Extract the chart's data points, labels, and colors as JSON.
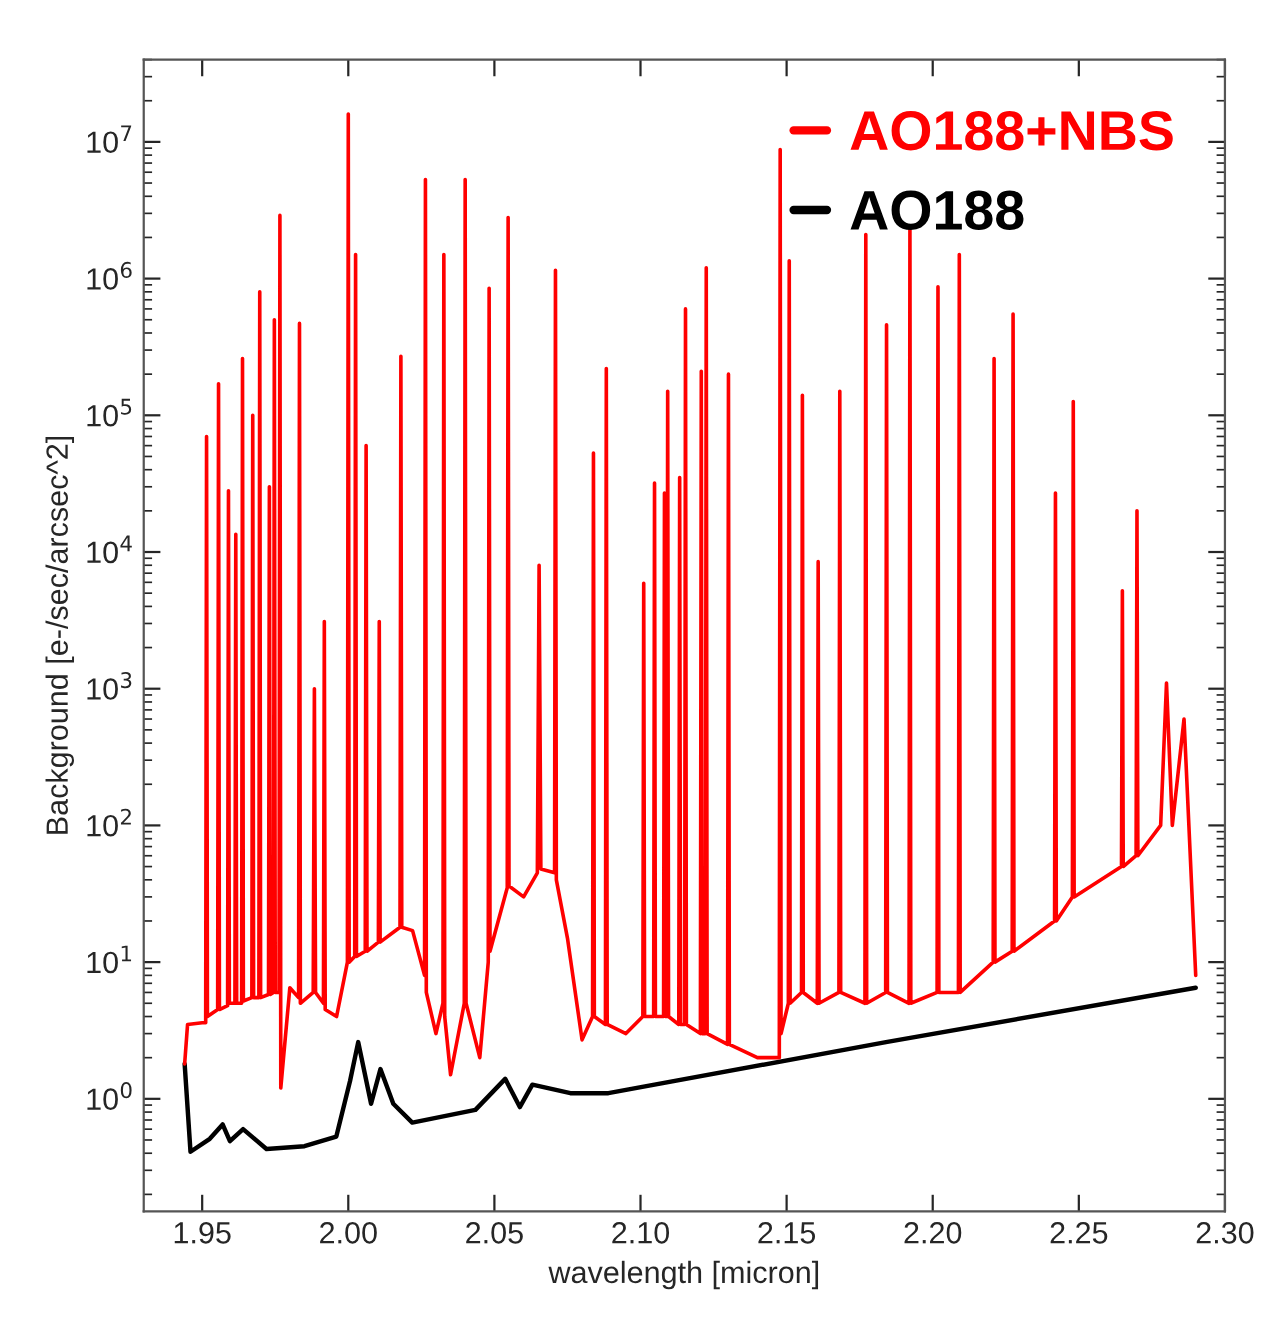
{
  "chart_data": {
    "type": "line",
    "xlabel": "wavelength [micron]",
    "ylabel": "Background [e-/sec/arcsec^2]",
    "log": "y",
    "grid": false,
    "legend": "top right",
    "marker": "none",
    "line_style": "solid",
    "xlim": [
      1.93,
      2.3
    ],
    "ylim": [
      0.15,
      40000000
    ],
    "xticks": [
      1.95,
      {
        "value": 2.0,
        "label": "2.00"
      },
      2.05,
      {
        "value": 2.1,
        "label": "2.10"
      },
      2.15,
      {
        "value": 2.2,
        "label": "2.20"
      },
      2.25,
      {
        "value": 2.3,
        "label": "2.30"
      }
    ],
    "yticks": [
      {
        "value": 1,
        "label": "10$^{0}$"
      },
      {
        "value": 10,
        "label": "10$^{1}$"
      },
      {
        "value": 100,
        "label": "10$^{2}$"
      },
      {
        "value": 1000,
        "label": "10$^{3}$"
      },
      {
        "value": 10000,
        "label": "10$^{4}$"
      },
      {
        "value": 100000,
        "label": "10$^{5}$"
      },
      {
        "value": 1000000,
        "label": "10$^{6}$"
      },
      {
        "value": 10000000,
        "label": "10$^{7}$"
      }
    ],
    "series": [
      {
        "name": "AO188",
        "color": "#000000",
        "x": [
          1.944,
          1.946,
          1.9526,
          1.957,
          1.9595,
          1.964,
          1.972,
          1.985,
          1.9959,
          2.0006,
          2.0034,
          2.0078,
          2.011,
          2.0154,
          2.0219,
          2.0435,
          2.0537,
          2.0587,
          2.063,
          2.076,
          2.089,
          2.184,
          2.29
        ],
        "values": [
          1.8,
          0.41,
          0.51,
          0.65,
          0.49,
          0.6,
          0.43,
          0.45,
          0.53,
          1.35,
          2.6,
          0.92,
          1.65,
          0.92,
          0.67,
          0.83,
          1.4,
          0.87,
          1.27,
          1.1,
          1.1,
          2.6,
          6.5
        ]
      },
      {
        "name": "AO188+NBS",
        "color": "#ff0000",
        "x": [
          1.944,
          1.945,
          1.95,
          1.9512,
          1.9515,
          1.9518,
          1.9553,
          1.9556,
          1.9559,
          1.9587,
          1.959,
          1.9593,
          1.9612,
          1.9615,
          1.9618,
          1.9635,
          1.9638,
          1.9641,
          1.967,
          1.9673,
          1.9676,
          1.9694,
          1.9697,
          1.97,
          1.9727,
          1.973,
          1.9733,
          1.9744,
          1.9747,
          1.975,
          1.9763,
          1.9766,
          1.9769,
          1.98,
          1.983,
          1.9833,
          1.9836,
          1.988,
          1.9884,
          1.9888,
          1.9915,
          1.9918,
          1.9921,
          1.996,
          1.9997,
          2.0,
          2.0003,
          2.0022,
          2.0025,
          2.0028,
          2.0058,
          2.0061,
          2.0064,
          2.0103,
          2.0106,
          2.0109,
          2.0177,
          2.018,
          2.0183,
          2.022,
          2.0261,
          2.0264,
          2.0267,
          2.03,
          2.0324,
          2.0327,
          2.033,
          2.035,
          2.0397,
          2.04,
          2.0403,
          2.045,
          2.0479,
          2.0482,
          2.0485,
          2.0544,
          2.0547,
          2.055,
          2.06,
          2.0647,
          2.0653,
          2.0659,
          2.0706,
          2.0709,
          2.0712,
          2.075,
          2.08,
          2.0836,
          2.0839,
          2.0842,
          2.088,
          2.0883,
          2.0886,
          2.095,
          2.1008,
          2.1011,
          2.1014,
          2.1045,
          2.1048,
          2.1051,
          2.1079,
          2.1082,
          2.1085,
          2.109,
          2.1093,
          2.1096,
          2.1131,
          2.1134,
          2.1137,
          2.1151,
          2.1154,
          2.1157,
          2.1205,
          2.1208,
          2.1211,
          2.1222,
          2.1225,
          2.1228,
          2.1298,
          2.1301,
          2.1304,
          2.14,
          2.1475,
          2.1478,
          2.1481,
          2.1506,
          2.1509,
          2.1512,
          2.1551,
          2.1554,
          2.1557,
          2.1605,
          2.1608,
          2.1611,
          2.1679,
          2.1682,
          2.1685,
          2.1768,
          2.1771,
          2.1774,
          2.1839,
          2.1842,
          2.1845,
          2.1919,
          2.1922,
          2.1925,
          2.2015,
          2.2018,
          2.2021,
          2.2088,
          2.2091,
          2.2094,
          2.2207,
          2.221,
          2.2213,
          2.2272,
          2.2275,
          2.2278,
          2.2417,
          2.242,
          2.2423,
          2.2478,
          2.2481,
          2.2484,
          2.2646,
          2.2649,
          2.2652,
          2.2696,
          2.2699,
          2.2702,
          2.278,
          2.28,
          2.282,
          2.286,
          2.29
        ],
        "values": [
          1.8,
          3.5,
          3.6,
          3.6,
          70000,
          4,
          4.5,
          170000,
          4.5,
          4.8,
          28000,
          5,
          5,
          13500,
          5,
          5,
          260000,
          5.2,
          5.5,
          100000,
          5.5,
          5.5,
          800000,
          5.5,
          5.8,
          30000,
          5.8,
          6,
          500000,
          6,
          6,
          2900000,
          1.2,
          6.5,
          5.5,
          470000,
          5,
          6,
          1000,
          6,
          5,
          3100,
          4.5,
          4,
          10,
          16000000,
          10,
          11,
          1500000,
          11,
          12,
          60000,
          12,
          14,
          3100,
          14,
          18,
          270000,
          18,
          17,
          8,
          5300000,
          6,
          3,
          5,
          1500000,
          4,
          1.5,
          5,
          5300000,
          5,
          2,
          10,
          850000,
          12,
          35,
          2800000,
          36,
          30,
          45,
          8000,
          48,
          45,
          1150000,
          40,
          15,
          2.7,
          4,
          53000,
          4,
          3.5,
          220000,
          3.5,
          3,
          4,
          5900,
          4,
          4,
          32000,
          4,
          4,
          27000,
          4,
          4,
          150000,
          4,
          3.5,
          35000,
          3.5,
          3.5,
          600000,
          3.5,
          3,
          210000,
          3,
          3,
          1200000,
          3,
          2.5,
          200000,
          2.5,
          2,
          2,
          8800000,
          3,
          5,
          1350000,
          5,
          6,
          140000,
          6,
          5,
          8500,
          5,
          6,
          150000,
          6,
          5,
          2100000,
          5,
          6,
          460000,
          6,
          5,
          2400000,
          5,
          6,
          870000,
          6,
          6,
          1500000,
          6,
          10,
          260000,
          10,
          12,
          550000,
          12,
          20,
          27000,
          20,
          30,
          126000,
          30,
          50,
          5200,
          50,
          60,
          20000,
          60,
          100,
          1100,
          100,
          600,
          8
        ]
      }
    ]
  }
}
